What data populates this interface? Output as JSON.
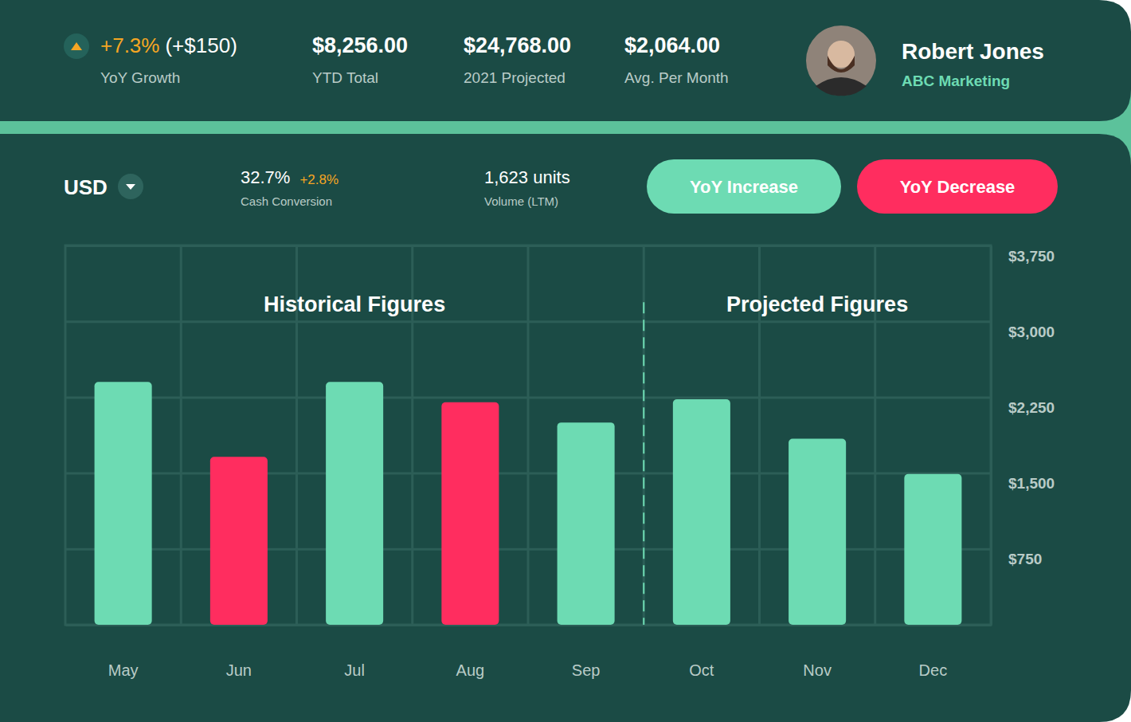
{
  "header": {
    "growth": {
      "change": "+7.3%",
      "amount": "(+$150)",
      "label": "YoY Growth"
    },
    "stats": [
      {
        "value": "$8,256.00",
        "label": "YTD Total"
      },
      {
        "value": "$24,768.00",
        "label": "2021 Projected"
      },
      {
        "value": "$2,064.00",
        "label": "Avg. Per Month"
      }
    ],
    "profile": {
      "name": "Robert Jones",
      "company": "ABC Marketing"
    }
  },
  "toolbar": {
    "currency": "USD",
    "metrics": [
      {
        "value": "32.7%",
        "change": "+2.8%",
        "label": "Cash Conversion"
      },
      {
        "value": "1,623 units",
        "label": "Volume (LTM)"
      }
    ],
    "buttons": [
      {
        "label": "YoY Increase",
        "color": "#6ddbb3"
      },
      {
        "label": "YoY Decrease",
        "color": "#ff2d5f"
      }
    ]
  },
  "chart_data": {
    "type": "bar",
    "categories": [
      "May",
      "Jun",
      "Jul",
      "Aug",
      "Sep",
      "Oct",
      "Nov",
      "Dec"
    ],
    "values": [
      2400,
      1660,
      2400,
      2200,
      2000,
      2230,
      1840,
      1490
    ],
    "colors": [
      "#6ddbb3",
      "#ff2d5f",
      "#6ddbb3",
      "#ff2d5f",
      "#6ddbb3",
      "#6ddbb3",
      "#6ddbb3",
      "#6ddbb3"
    ],
    "ylim": [
      0,
      3750
    ],
    "yticks": [
      {
        "value": 750,
        "label": "$750"
      },
      {
        "value": 1500,
        "label": "$1,500"
      },
      {
        "value": 2250,
        "label": "$2,250"
      },
      {
        "value": 3000,
        "label": "$3,000"
      },
      {
        "value": 3750,
        "label": "$3,750"
      }
    ],
    "grid": true,
    "annotations": [
      {
        "text": "Historical Figures",
        "from": "May",
        "to": "Sep"
      },
      {
        "text": "Projected Figures",
        "from": "Oct",
        "to": "Dec"
      }
    ]
  }
}
